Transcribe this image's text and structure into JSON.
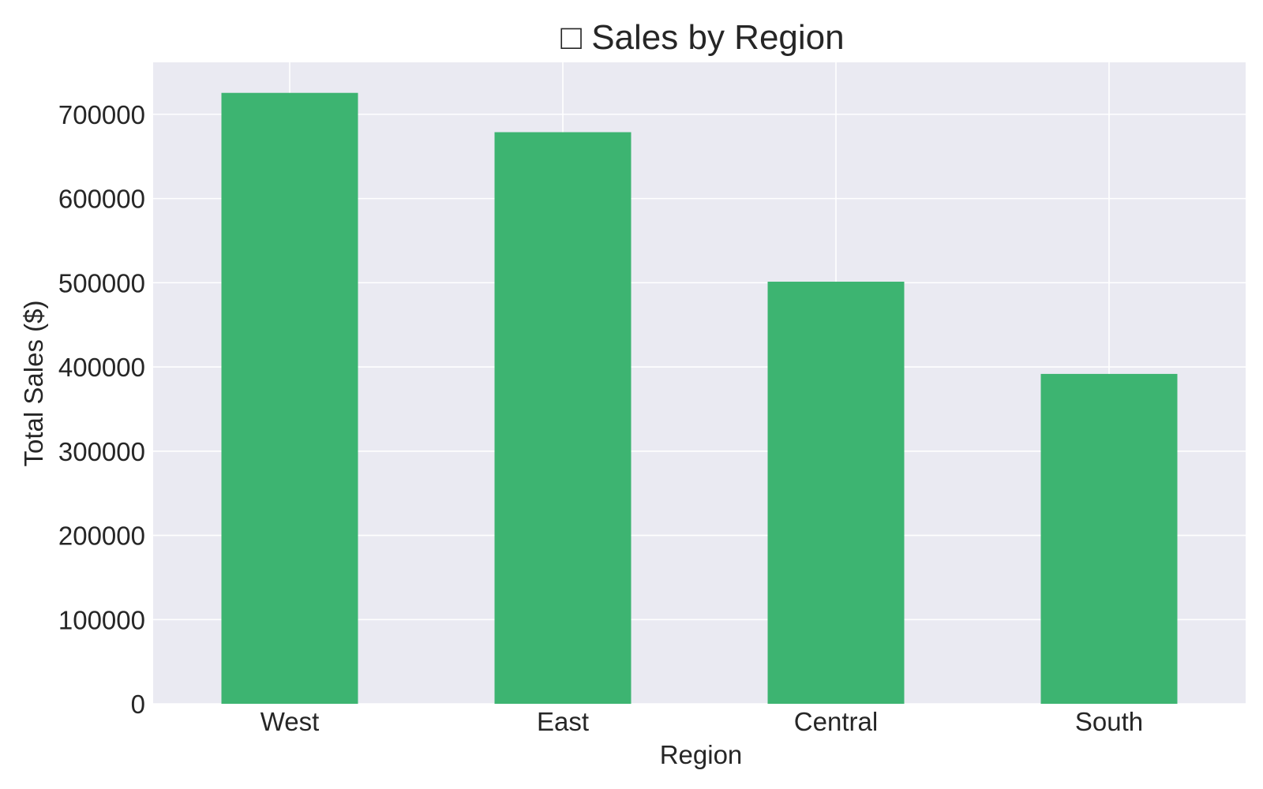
{
  "chart_data": {
    "type": "bar",
    "title": "□ Sales by Region",
    "xlabel": "Region",
    "ylabel": "Total Sales ($)",
    "categories": [
      "West",
      "East",
      "Central",
      "South"
    ],
    "values": [
      725458,
      678781,
      501240,
      391722
    ],
    "ylim": [
      0,
      761730
    ],
    "yticks": [
      0,
      100000,
      200000,
      300000,
      400000,
      500000,
      600000,
      700000
    ],
    "ytick_labels": [
      "0",
      "100000",
      "200000",
      "300000",
      "400000",
      "500000",
      "600000",
      "700000"
    ],
    "grid": true,
    "legend": "none"
  },
  "colors": {
    "bar": "#3db471",
    "plot_background": "#eaeaf2",
    "grid": "#ffffff",
    "text": "#262626"
  }
}
